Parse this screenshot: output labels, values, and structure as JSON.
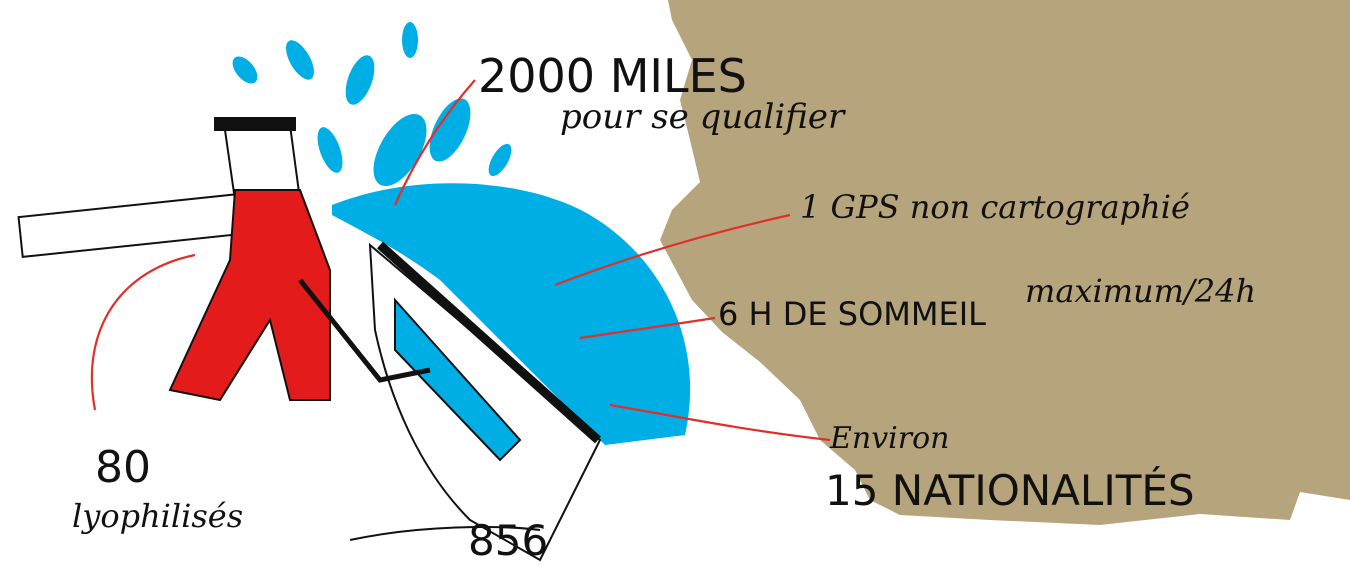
{
  "labels": {
    "miles": "2000 MILES",
    "qualify": "pour se qualifier",
    "gps": "1 GPS non cartographié",
    "sleep_caps": "6 H DE SOMMEIL",
    "sleep_rest": "maximum/24h",
    "about": "Environ",
    "nationalities": "15 NATIONALITÉS",
    "meals": "80",
    "meals_label": "lyophilisés",
    "boat_number": "856"
  }
}
